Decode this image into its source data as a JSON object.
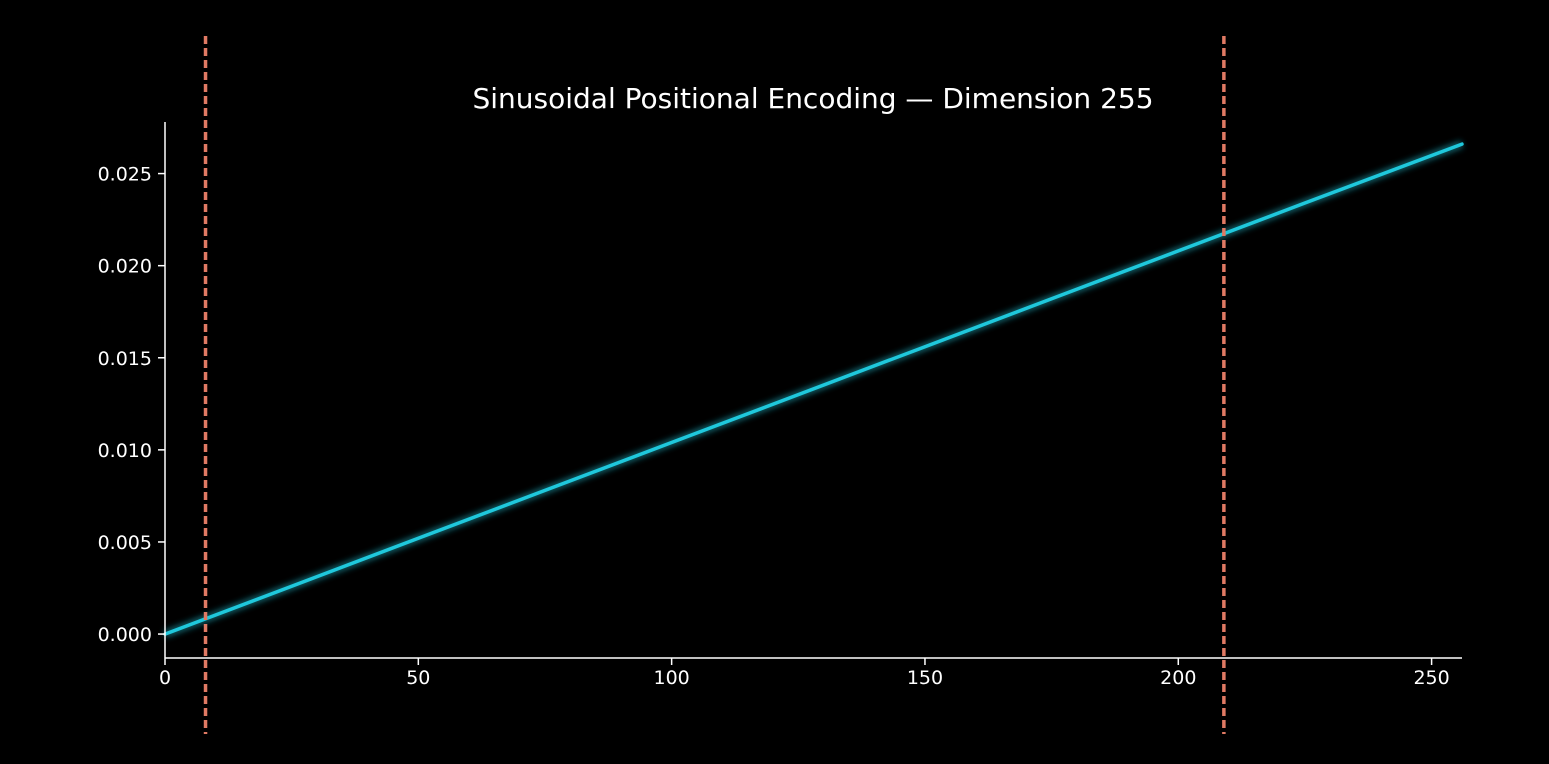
{
  "chart_data": {
    "type": "line",
    "title": "Sinusoidal Positional Encoding — Dimension 255",
    "xlabel": "",
    "ylabel": "",
    "xlim": [
      0,
      256
    ],
    "ylim": [
      -0.0013,
      0.0278
    ],
    "x_ticks": [
      0,
      50,
      100,
      150,
      200,
      250
    ],
    "x_tick_labels": [
      "0",
      "50",
      "100",
      "150",
      "200",
      "250"
    ],
    "y_ticks": [
      0.0,
      0.005,
      0.01,
      0.015,
      0.02,
      0.025
    ],
    "y_tick_labels": [
      "0.000",
      "0.005",
      "0.010",
      "0.015",
      "0.020",
      "0.025"
    ],
    "grid": false,
    "series": [
      {
        "color": "#1fc8dc",
        "x": [
          0,
          25,
          50,
          75,
          100,
          125,
          150,
          175,
          200,
          225,
          256
        ],
        "y": [
          0.0,
          0.0026,
          0.0052,
          0.0078,
          0.0104,
          0.013,
          0.0156,
          0.0182,
          0.0208,
          0.0234,
          0.0266
        ]
      }
    ],
    "vlines": [
      {
        "x": 8,
        "color": "#e07a64",
        "style": "dashed"
      },
      {
        "x": 209,
        "color": "#e07a64",
        "style": "dashed"
      }
    ],
    "colors": {
      "background": "#000000",
      "axis": "#ffffff",
      "line": "#1fc8dc",
      "vline": "#e07a64"
    }
  }
}
